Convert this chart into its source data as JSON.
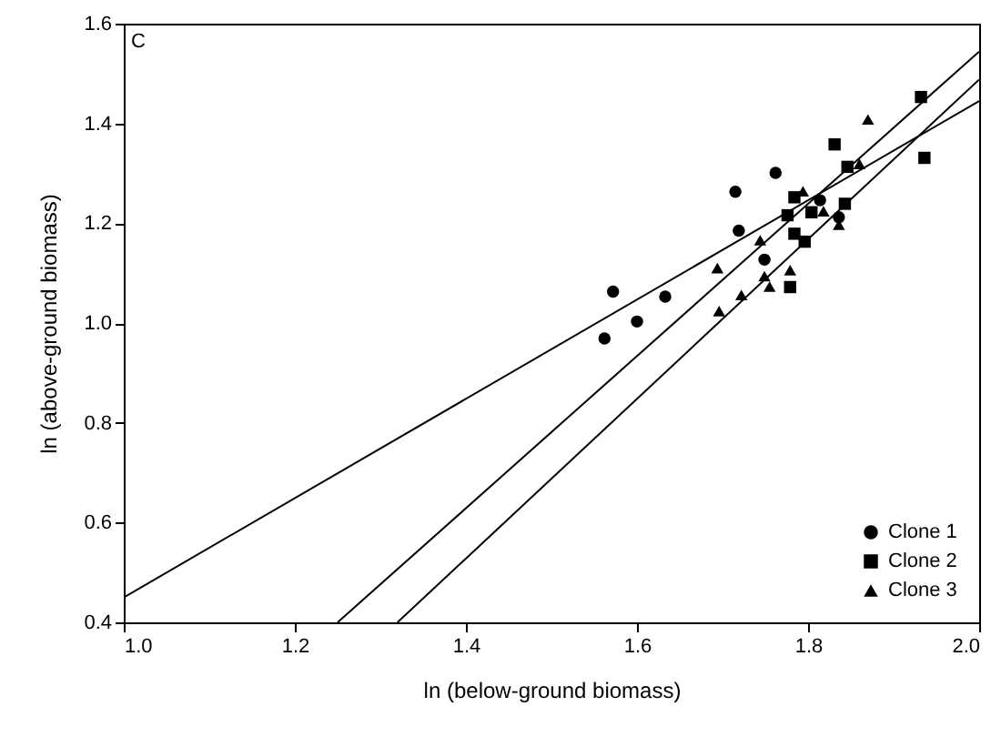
{
  "chart_data": {
    "type": "scatter",
    "xlabel": "ln (below-ground biomass)",
    "ylabel": "ln (above-ground biomass)",
    "annotations": [
      "C"
    ],
    "xlim": [
      1.0,
      2.0
    ],
    "ylim": [
      0.4,
      1.6
    ],
    "xticks": [
      {
        "value": 1,
        "label": "1.0"
      },
      1.2,
      1.4,
      1.6,
      1.8,
      {
        "value": 2,
        "label": "2.0"
      }
    ],
    "yticks": [
      0.4,
      0.6,
      0.8,
      {
        "value": 1,
        "label": "1.0"
      },
      1.2,
      1.4,
      1.6
    ],
    "grid": false,
    "legend": "bottom right",
    "series": [
      {
        "name": "Clone 1",
        "color": "#000000",
        "marker": "circle",
        "x": [
          1.562,
          1.572,
          1.6,
          1.633,
          1.715,
          1.719,
          1.762,
          1.749,
          1.814,
          1.836
        ],
        "values": [
          0.969,
          1.063,
          1.003,
          1.053,
          1.263,
          1.185,
          1.301,
          1.127,
          1.246,
          1.212
        ]
      },
      {
        "name": "Clone 2",
        "color": "#000000",
        "marker": "square",
        "x": [
          1.932,
          1.936,
          1.831,
          1.846,
          1.784,
          1.776,
          1.804,
          1.843,
          1.784,
          1.796,
          1.779
        ],
        "values": [
          1.453,
          1.331,
          1.358,
          1.313,
          1.252,
          1.216,
          1.222,
          1.239,
          1.179,
          1.163,
          1.072
        ]
      },
      {
        "name": "Clone 3",
        "color": "#000000",
        "marker": "triangle",
        "x": [
          1.87,
          1.86,
          1.794,
          1.818,
          1.836,
          1.744,
          1.694,
          1.749,
          1.779,
          1.755,
          1.722,
          1.696
        ],
        "values": [
          1.408,
          1.319,
          1.264,
          1.224,
          1.197,
          1.166,
          1.11,
          1.094,
          1.106,
          1.073,
          1.056,
          1.024
        ]
      },
      {
        "type": "line",
        "color": "#000000",
        "x": [
          1.0,
          2.0
        ],
        "values": [
          0.45,
          1.445
        ]
      },
      {
        "type": "line",
        "color": "#000000",
        "x": [
          1.25,
          2.0
        ],
        "values": [
          0.4,
          1.544
        ]
      },
      {
        "type": "line",
        "color": "#000000",
        "x": [
          1.32,
          2.0
        ],
        "values": [
          0.4,
          1.488
        ]
      }
    ]
  }
}
